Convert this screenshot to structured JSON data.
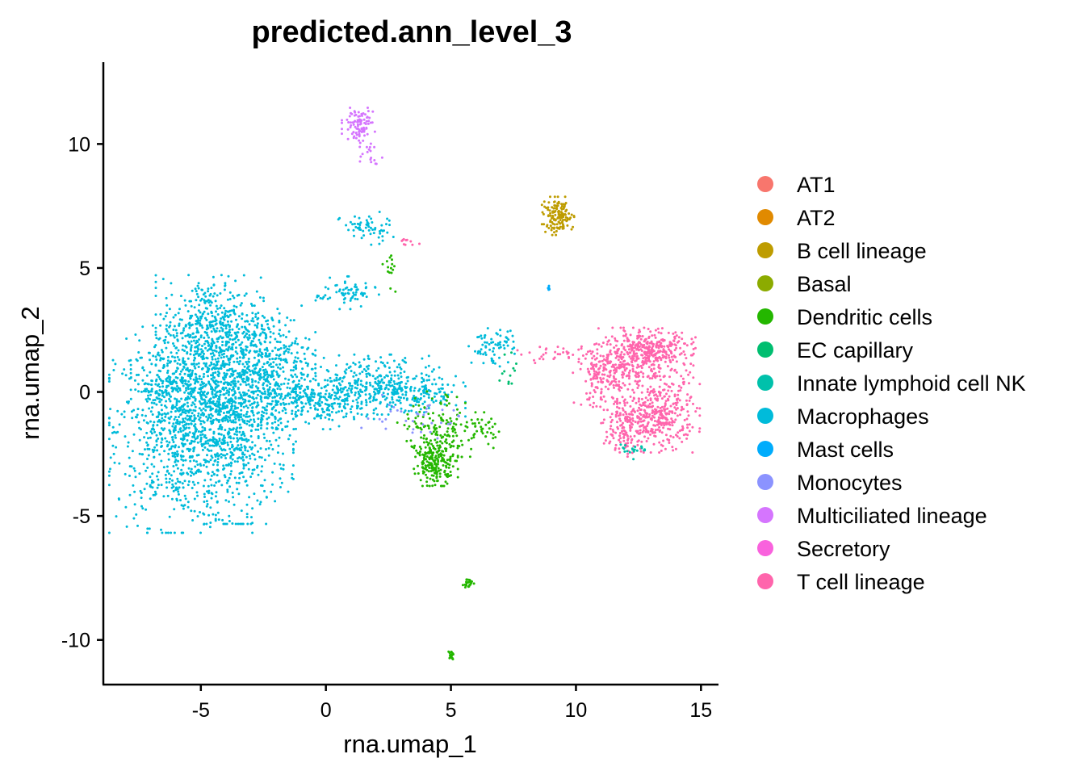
{
  "chart_data": {
    "type": "scatter",
    "title": "predicted.ann_level_3",
    "xlabel": "rna.umap_1",
    "ylabel": "rna.umap_2",
    "xlim": [
      -8.9,
      15.7
    ],
    "ylim": [
      -11.8,
      13.3
    ],
    "x_ticks": [
      -5,
      0,
      5,
      10,
      15
    ],
    "x_tick_labels": [
      "-5",
      "0",
      "5",
      "10",
      "15"
    ],
    "y_ticks": [
      -10,
      -5,
      0,
      5,
      10
    ],
    "y_tick_labels": [
      "-10",
      "-5",
      "0",
      "5",
      "10"
    ],
    "grid": false,
    "legend_position": "right",
    "legend": [
      {
        "name": "AT1",
        "color": "#F8766D"
      },
      {
        "name": "AT2",
        "color": "#E18A00"
      },
      {
        "name": "B cell lineage",
        "color": "#BE9C00"
      },
      {
        "name": "Basal",
        "color": "#8CAB00"
      },
      {
        "name": "Dendritic cells",
        "color": "#24B700"
      },
      {
        "name": "EC capillary",
        "color": "#00BE70"
      },
      {
        "name": "Innate lymphoid cell NK",
        "color": "#00C1AB"
      },
      {
        "name": "Macrophages",
        "color": "#00BBDA"
      },
      {
        "name": "Mast cells",
        "color": "#00ACFC"
      },
      {
        "name": "Monocytes",
        "color": "#8B93FF"
      },
      {
        "name": "Multiciliated lineage",
        "color": "#D575FE"
      },
      {
        "name": "Secretory",
        "color": "#F962DD"
      },
      {
        "name": "T cell lineage",
        "color": "#FF65AC"
      }
    ],
    "clusters": [
      {
        "series": "Macrophages",
        "cx": -5.8,
        "cy": -1.5,
        "sx": 1.3,
        "sy": 1.9,
        "n": 900
      },
      {
        "series": "Macrophages",
        "cx": -3.5,
        "cy": -1.8,
        "sx": 1.0,
        "sy": 1.6,
        "n": 500
      },
      {
        "series": "Macrophages",
        "cx": -4.6,
        "cy": 2.6,
        "sx": 1.0,
        "sy": 1.0,
        "n": 450
      },
      {
        "series": "Macrophages",
        "cx": -2.4,
        "cy": 1.5,
        "sx": 0.9,
        "sy": 0.9,
        "n": 300
      },
      {
        "series": "Macrophages",
        "cx": -4.5,
        "cy": 0.2,
        "sx": 1.5,
        "sy": 1.0,
        "n": 500
      },
      {
        "series": "Macrophages",
        "cx": -0.5,
        "cy": -0.4,
        "sx": 1.1,
        "sy": 0.5,
        "n": 280
      },
      {
        "series": "Macrophages",
        "cx": 1.7,
        "cy": 0.3,
        "sx": 1.1,
        "sy": 0.55,
        "n": 260
      },
      {
        "series": "Macrophages",
        "cx": 3.6,
        "cy": 0.0,
        "sx": 0.9,
        "sy": 0.45,
        "n": 160
      },
      {
        "series": "Macrophages",
        "cx": 0.8,
        "cy": 4.0,
        "sx": 0.6,
        "sy": 0.3,
        "n": 70
      },
      {
        "series": "Macrophages",
        "cx": 1.6,
        "cy": 6.6,
        "sx": 0.5,
        "sy": 0.3,
        "n": 60
      },
      {
        "series": "Macrophages",
        "cx": 6.7,
        "cy": 1.8,
        "sx": 0.45,
        "sy": 0.35,
        "n": 70
      },
      {
        "series": "Dendritic cells",
        "cx": 4.4,
        "cy": -2.8,
        "sx": 0.4,
        "sy": 0.45,
        "n": 220
      },
      {
        "series": "Dendritic cells",
        "cx": 4.8,
        "cy": -1.3,
        "sx": 0.9,
        "sy": 0.6,
        "n": 140
      },
      {
        "series": "Dendritic cells",
        "cx": 6.3,
        "cy": -1.6,
        "sx": 0.3,
        "sy": 0.2,
        "n": 20
      },
      {
        "series": "Dendritic cells",
        "cx": 2.6,
        "cy": 5.0,
        "sx": 0.15,
        "sy": 0.5,
        "n": 15
      },
      {
        "series": "Dendritic cells",
        "cx": 5.7,
        "cy": -7.7,
        "sx": 0.1,
        "sy": 0.1,
        "n": 20
      },
      {
        "series": "Dendritic cells",
        "cx": 5.0,
        "cy": -10.6,
        "sx": 0.05,
        "sy": 0.08,
        "n": 20
      },
      {
        "series": "Monocytes",
        "cx": 3.5,
        "cy": -1.0,
        "sx": 1.0,
        "sy": 0.4,
        "n": 35
      },
      {
        "series": "T cell lineage",
        "cx": 12.8,
        "cy": 1.6,
        "sx": 0.9,
        "sy": 0.45,
        "n": 420
      },
      {
        "series": "T cell lineage",
        "cx": 13.3,
        "cy": -0.9,
        "sx": 0.75,
        "sy": 0.7,
        "n": 380
      },
      {
        "series": "T cell lineage",
        "cx": 11.2,
        "cy": 0.6,
        "sx": 0.6,
        "sy": 0.6,
        "n": 200
      },
      {
        "series": "T cell lineage",
        "cx": 12.0,
        "cy": -1.4,
        "sx": 0.45,
        "sy": 0.55,
        "n": 120
      },
      {
        "series": "T cell lineage",
        "cx": 9.2,
        "cy": 1.5,
        "sx": 0.7,
        "sy": 0.15,
        "n": 30
      },
      {
        "series": "T cell lineage",
        "cx": 3.3,
        "cy": 6.0,
        "sx": 0.2,
        "sy": 0.1,
        "n": 10
      },
      {
        "series": "B cell lineage",
        "cx": 9.3,
        "cy": 7.1,
        "sx": 0.3,
        "sy": 0.35,
        "n": 140
      },
      {
        "series": "Multiciliated lineage",
        "cx": 1.3,
        "cy": 10.8,
        "sx": 0.3,
        "sy": 0.3,
        "n": 90
      },
      {
        "series": "Multiciliated lineage",
        "cx": 1.7,
        "cy": 9.8,
        "sx": 0.25,
        "sy": 0.3,
        "n": 20
      },
      {
        "series": "Innate lymphoid cell NK",
        "cx": 12.2,
        "cy": -2.3,
        "sx": 0.25,
        "sy": 0.2,
        "n": 20
      },
      {
        "series": "Mast cells",
        "cx": 8.9,
        "cy": 4.2,
        "sx": 0.03,
        "sy": 0.05,
        "n": 6
      },
      {
        "series": "EC capillary",
        "cx": 7.3,
        "cy": 1.0,
        "sx": 0.2,
        "sy": 0.4,
        "n": 12
      }
    ]
  }
}
